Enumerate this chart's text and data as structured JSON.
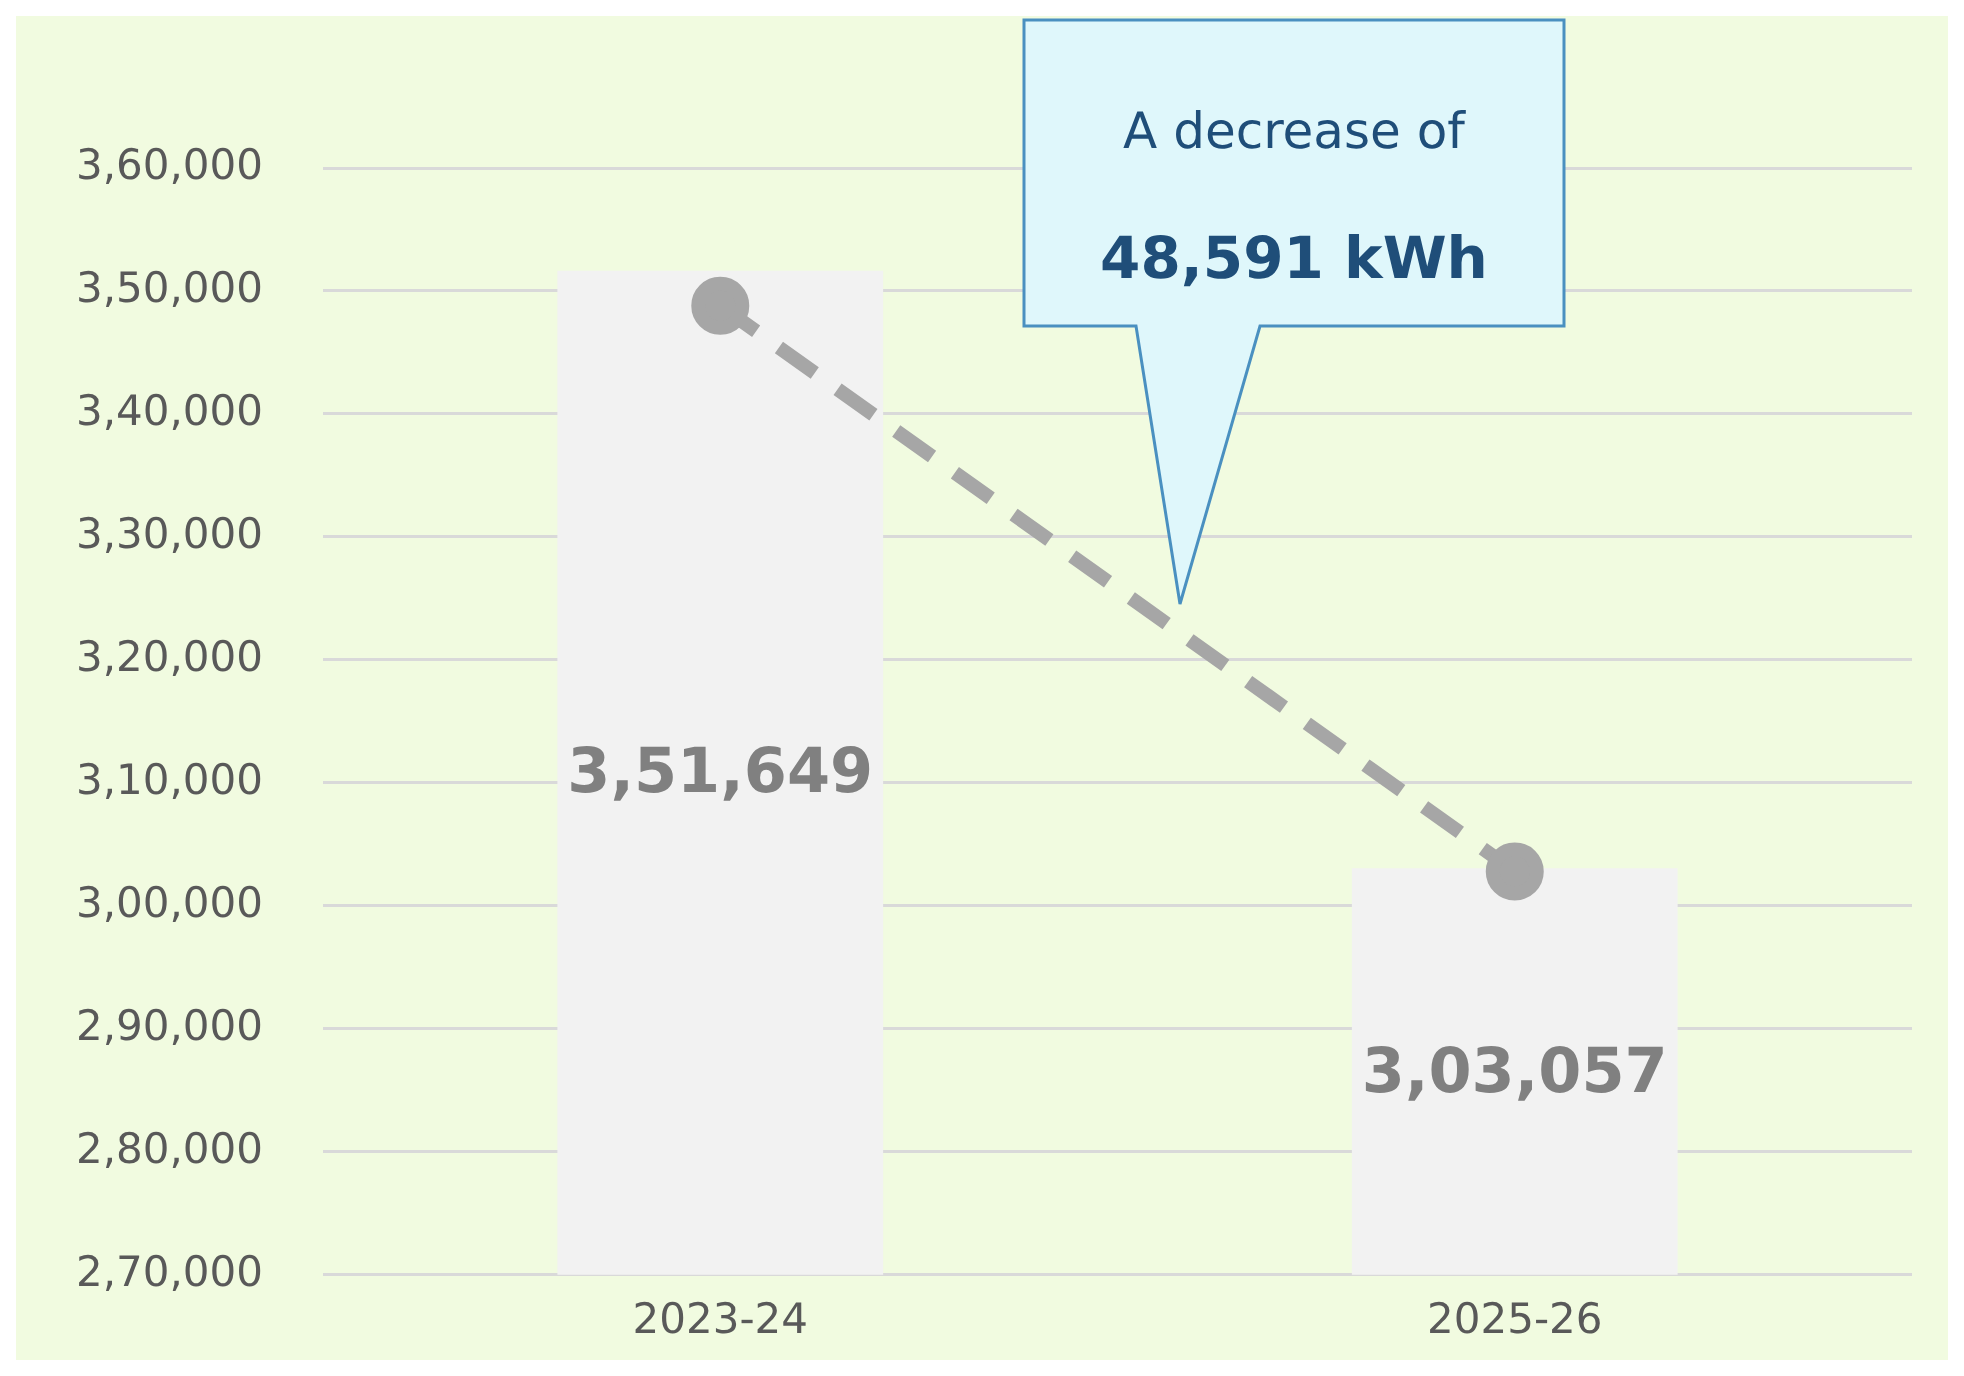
{
  "chart_data": {
    "type": "bar",
    "categories": [
      "2023-24",
      "2025-26"
    ],
    "series": [
      {
        "color": "#f2f2f2",
        "values": [
          351649,
          303057
        ],
        "value_labels": [
          "3,51,649",
          "3,03,057"
        ]
      },
      {
        "type": "line",
        "color": "#a6a6a6",
        "values": [
          348800,
          302800
        ]
      }
    ],
    "ylim": [
      270000,
      360000
    ],
    "yticks": [
      {
        "value": 270000,
        "label": "2,70,000"
      },
      {
        "value": 280000,
        "label": "2,80,000"
      },
      {
        "value": 290000,
        "label": "2,90,000"
      },
      {
        "value": 300000,
        "label": "3,00,000"
      },
      {
        "value": 310000,
        "label": "3,10,000"
      },
      {
        "value": 320000,
        "label": "3,20,000"
      },
      {
        "value": 330000,
        "label": "3,30,000"
      },
      {
        "value": 340000,
        "label": "3,40,000"
      },
      {
        "value": 350000,
        "label": "3,50,000"
      },
      {
        "value": 360000,
        "label": "3,60,000"
      }
    ],
    "grid": "y",
    "marker": "circle",
    "line_style": "dashed",
    "annotations": [
      "A  decrease of",
      "48,591 kWh"
    ]
  }
}
